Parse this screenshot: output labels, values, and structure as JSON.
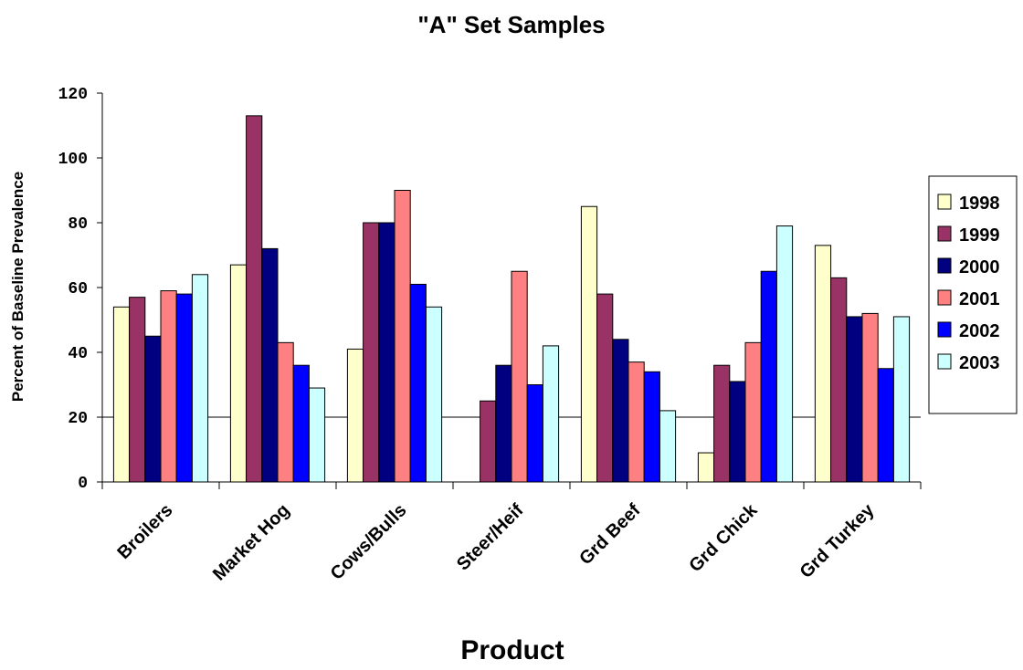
{
  "chart_data": {
    "type": "bar",
    "title": "\"A\" Set Samples",
    "xlabel": "Product",
    "ylabel": "Percent of Baseline Prevalence",
    "ylim": [
      0,
      120
    ],
    "yticks": [
      0,
      20,
      40,
      60,
      80,
      100,
      120
    ],
    "grid": "horizontal at 20 only",
    "legend_position": "right",
    "categories": [
      "Broilers",
      "Market Hog",
      "Cows/Bulls",
      "Steer/Heif",
      "Grd Beef",
      "Grd Chick",
      "Grd Turkey"
    ],
    "series": [
      {
        "name": "1998",
        "color": "#FFFFCC",
        "values": [
          54,
          67,
          41,
          null,
          85,
          9,
          73
        ]
      },
      {
        "name": "1999",
        "color": "#993366",
        "values": [
          57,
          113,
          80,
          25,
          58,
          36,
          63
        ]
      },
      {
        "name": "2000",
        "color": "#000080",
        "values": [
          45,
          72,
          80,
          36,
          44,
          31,
          51
        ]
      },
      {
        "name": "2001",
        "color": "#FF8080",
        "values": [
          59,
          43,
          90,
          65,
          37,
          43,
          52
        ]
      },
      {
        "name": "2002",
        "color": "#0000FF",
        "values": [
          58,
          36,
          61,
          30,
          34,
          65,
          35
        ]
      },
      {
        "name": "2003",
        "color": "#CCFFFF",
        "values": [
          64,
          29,
          54,
          42,
          22,
          79,
          51
        ]
      }
    ]
  }
}
